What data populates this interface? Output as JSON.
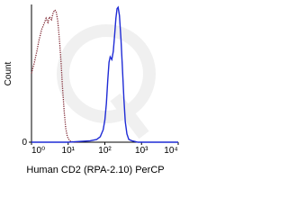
{
  "chart_data": {
    "type": "line",
    "y_label": "Count",
    "x_label": "Human CD2 (RPA-2.10) PerCP",
    "xscale": "log",
    "xlim": [
      1,
      10000
    ],
    "xticks": [
      {
        "value": 1,
        "label": "10⁰"
      },
      {
        "value": 10,
        "label": "10¹"
      },
      {
        "value": 100,
        "label": "10²"
      },
      {
        "value": 1000,
        "label": "10³"
      },
      {
        "value": 10000,
        "label": "10⁴"
      }
    ],
    "ylim": [
      0,
      100
    ],
    "yticks": [
      0
    ],
    "series": [
      {
        "color": "#7a1f2b",
        "dash": "dotted",
        "x": [
          1,
          1.2,
          1.4,
          1.6,
          1.9,
          2.2,
          2.5,
          2.8,
          3.1,
          3.5,
          3.9,
          4.3,
          4.7,
          5.2,
          5.8,
          6.4,
          7,
          7.8,
          8.6,
          9.5,
          11,
          14,
          20
        ],
        "values": [
          50,
          58,
          66,
          74,
          82,
          86,
          90,
          87,
          91,
          89,
          94,
          96,
          95,
          88,
          74,
          58,
          40,
          22,
          10,
          4,
          1,
          0,
          0
        ]
      },
      {
        "color": "#1f2bd6",
        "dash": "solid",
        "x": [
          1,
          10,
          40,
          60,
          75,
          90,
          100,
          110,
          120,
          130,
          140,
          155,
          170,
          185,
          200,
          215,
          230,
          250,
          275,
          300,
          330,
          360,
          400,
          450,
          550,
          800,
          2000,
          10000
        ],
        "values": [
          0,
          0,
          1,
          2,
          4,
          9,
          16,
          28,
          45,
          58,
          62,
          60,
          66,
          78,
          90,
          97,
          98,
          92,
          75,
          55,
          32,
          15,
          6,
          2,
          1,
          0,
          0,
          0
        ]
      }
    ]
  }
}
